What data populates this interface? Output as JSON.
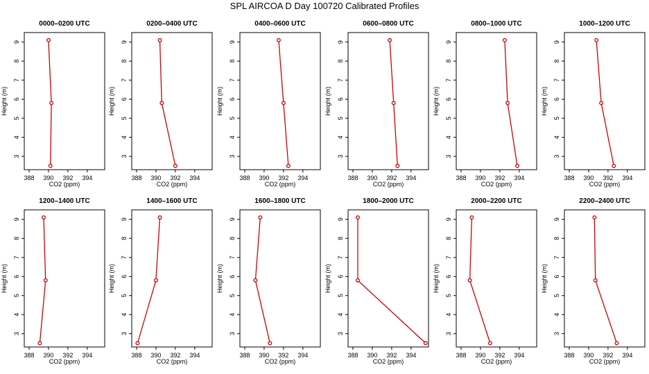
{
  "title": "SPL AIRCOA D  Day 100720  Calibrated Profiles",
  "chart_data": [
    {
      "type": "line",
      "title": "0000–0200 UTC",
      "xlabel": "CO2 (ppm)",
      "ylabel": "Height (m)",
      "xlim": [
        387.5,
        395.8
      ],
      "ylim": [
        2.3,
        9.5
      ],
      "xticks": [
        388,
        390,
        392,
        394
      ],
      "yticks": [
        3,
        4,
        5,
        6,
        7,
        8,
        9
      ],
      "series": [
        {
          "color": "#cc0000",
          "x": [
            390.0,
            390.3,
            390.2
          ],
          "y": [
            9.1,
            5.8,
            2.5
          ]
        }
      ]
    },
    {
      "type": "line",
      "title": "0200–0400 UTC",
      "xlabel": "CO2 (ppm)",
      "ylabel": "Height (m)",
      "xlim": [
        387.5,
        395.8
      ],
      "ylim": [
        2.3,
        9.5
      ],
      "xticks": [
        388,
        390,
        392,
        394
      ],
      "yticks": [
        3,
        4,
        5,
        6,
        7,
        8,
        9
      ],
      "series": [
        {
          "color": "#cc0000",
          "x": [
            390.4,
            390.6,
            392.0
          ],
          "y": [
            9.1,
            5.8,
            2.5
          ]
        }
      ]
    },
    {
      "type": "line",
      "title": "0400–0600 UTC",
      "xlabel": "CO2 (ppm)",
      "ylabel": "Height (m)",
      "xlim": [
        387.5,
        395.8
      ],
      "ylim": [
        2.3,
        9.5
      ],
      "xticks": [
        388,
        390,
        392,
        394
      ],
      "yticks": [
        3,
        4,
        5,
        6,
        7,
        8,
        9
      ],
      "series": [
        {
          "color": "#cc0000",
          "x": [
            391.5,
            392.0,
            392.5
          ],
          "y": [
            9.1,
            5.8,
            2.5
          ]
        }
      ]
    },
    {
      "type": "line",
      "title": "0600–0800 UTC",
      "xlabel": "CO2 (ppm)",
      "ylabel": "Height (m)",
      "xlim": [
        387.5,
        395.8
      ],
      "ylim": [
        2.3,
        9.5
      ],
      "xticks": [
        388,
        390,
        392,
        394
      ],
      "yticks": [
        3,
        4,
        5,
        6,
        7,
        8,
        9
      ],
      "series": [
        {
          "color": "#cc0000",
          "x": [
            391.8,
            392.2,
            392.6
          ],
          "y": [
            9.1,
            5.8,
            2.5
          ]
        }
      ]
    },
    {
      "type": "line",
      "title": "0800–1000 UTC",
      "xlabel": "CO2 (ppm)",
      "ylabel": "Height (m)",
      "xlim": [
        387.5,
        395.8
      ],
      "ylim": [
        2.3,
        9.5
      ],
      "xticks": [
        388,
        390,
        392,
        394
      ],
      "yticks": [
        3,
        4,
        5,
        6,
        7,
        8,
        9
      ],
      "series": [
        {
          "color": "#cc0000",
          "x": [
            392.5,
            392.8,
            393.8
          ],
          "y": [
            9.1,
            5.8,
            2.5
          ]
        }
      ]
    },
    {
      "type": "line",
      "title": "1000–1200 UTC",
      "xlabel": "CO2 (ppm)",
      "ylabel": "Height (m)",
      "xlim": [
        387.5,
        395.8
      ],
      "ylim": [
        2.3,
        9.5
      ],
      "xticks": [
        388,
        390,
        392,
        394
      ],
      "yticks": [
        3,
        4,
        5,
        6,
        7,
        8,
        9
      ],
      "series": [
        {
          "color": "#cc0000",
          "x": [
            390.8,
            391.3,
            392.6
          ],
          "y": [
            9.1,
            5.8,
            2.5
          ]
        }
      ]
    },
    {
      "type": "line",
      "title": "1200–1400 UTC",
      "xlabel": "CO2 (ppm)",
      "ylabel": "Height (m)",
      "xlim": [
        387.5,
        395.8
      ],
      "ylim": [
        2.3,
        9.5
      ],
      "xticks": [
        388,
        390,
        392,
        394
      ],
      "yticks": [
        3,
        4,
        5,
        6,
        7,
        8,
        9
      ],
      "series": [
        {
          "color": "#cc0000",
          "x": [
            389.5,
            389.7,
            389.1
          ],
          "y": [
            9.1,
            5.8,
            2.5
          ]
        }
      ]
    },
    {
      "type": "line",
      "title": "1400–1600 UTC",
      "xlabel": "CO2 (ppm)",
      "ylabel": "Height (m)",
      "xlim": [
        387.5,
        395.8
      ],
      "ylim": [
        2.3,
        9.5
      ],
      "xticks": [
        388,
        390,
        392,
        394
      ],
      "yticks": [
        3,
        4,
        5,
        6,
        7,
        8,
        9
      ],
      "series": [
        {
          "color": "#cc0000",
          "x": [
            390.4,
            390.0,
            388.1
          ],
          "y": [
            9.1,
            5.8,
            2.5
          ]
        }
      ]
    },
    {
      "type": "line",
      "title": "1600–1800 UTC",
      "xlabel": "CO2 (ppm)",
      "ylabel": "Height (m)",
      "xlim": [
        387.5,
        395.8
      ],
      "ylim": [
        2.3,
        9.5
      ],
      "xticks": [
        388,
        390,
        392,
        394
      ],
      "yticks": [
        3,
        4,
        5,
        6,
        7,
        8,
        9
      ],
      "series": [
        {
          "color": "#cc0000",
          "x": [
            389.6,
            389.1,
            390.6
          ],
          "y": [
            9.1,
            5.8,
            2.5
          ]
        }
      ]
    },
    {
      "type": "line",
      "title": "1800–2000 UTC",
      "xlabel": "CO2 (ppm)",
      "ylabel": "Height (m)",
      "xlim": [
        387.5,
        395.8
      ],
      "ylim": [
        2.3,
        9.5
      ],
      "xticks": [
        388,
        390,
        392,
        394
      ],
      "yticks": [
        3,
        4,
        5,
        6,
        7,
        8,
        9
      ],
      "series": [
        {
          "color": "#cc0000",
          "x": [
            388.5,
            388.5,
            395.5
          ],
          "y": [
            9.1,
            5.8,
            2.5
          ]
        }
      ]
    },
    {
      "type": "line",
      "title": "2000–2200 UTC",
      "xlabel": "CO2 (ppm)",
      "ylabel": "Height (m)",
      "xlim": [
        387.5,
        395.8
      ],
      "ylim": [
        2.3,
        9.5
      ],
      "xticks": [
        388,
        390,
        392,
        394
      ],
      "yticks": [
        3,
        4,
        5,
        6,
        7,
        8,
        9
      ],
      "series": [
        {
          "color": "#cc0000",
          "x": [
            389.1,
            388.9,
            391.0
          ],
          "y": [
            9.1,
            5.8,
            2.5
          ]
        }
      ]
    },
    {
      "type": "line",
      "title": "2200–2400 UTC",
      "xlabel": "CO2 (ppm)",
      "ylabel": "Height (m)",
      "xlim": [
        387.5,
        395.8
      ],
      "ylim": [
        2.3,
        9.5
      ],
      "xticks": [
        388,
        390,
        392,
        394
      ],
      "yticks": [
        3,
        4,
        5,
        6,
        7,
        8,
        9
      ],
      "series": [
        {
          "color": "#cc0000",
          "x": [
            390.6,
            390.7,
            392.9
          ],
          "y": [
            9.1,
            5.8,
            2.5
          ]
        }
      ]
    }
  ]
}
